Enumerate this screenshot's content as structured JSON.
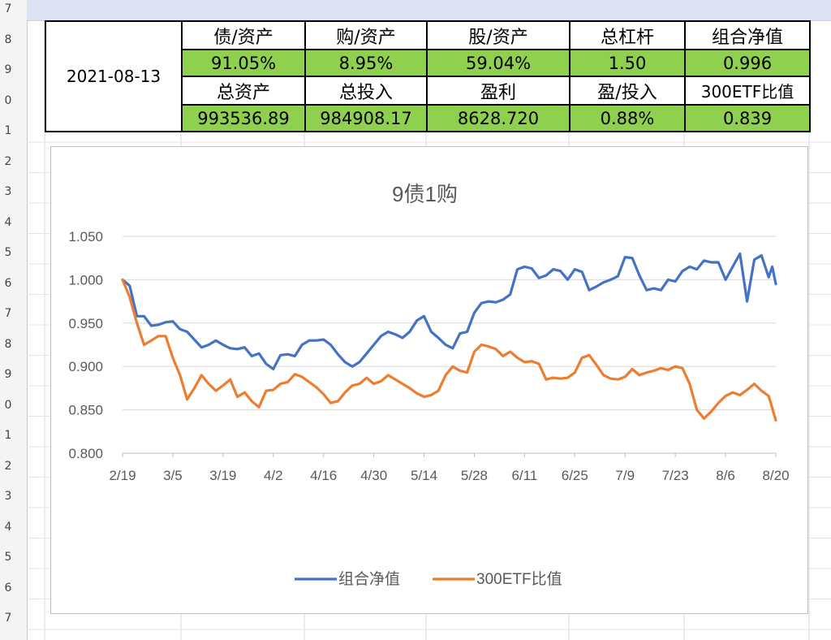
{
  "row_headers": [
    "7",
    "8",
    "9",
    "0",
    "1",
    "2",
    "3",
    "4",
    "5",
    "6",
    "7",
    "8",
    "9",
    "0",
    "1",
    "2",
    "3",
    "4",
    "5",
    "6",
    "7"
  ],
  "summary": {
    "date": "2021-08-13",
    "row1_headers": [
      "债/资产",
      "购/资产",
      "股/资产",
      "总杠杆",
      "组合净值"
    ],
    "row1_values": [
      "91.05%",
      "8.95%",
      "59.04%",
      "1.50",
      "0.996"
    ],
    "row2_headers": [
      "总资产",
      "总投入",
      "盈利",
      "盈/投入",
      "300ETF比值"
    ],
    "row2_values": [
      "993536.89",
      "984908.17",
      "8628.720",
      "0.88%",
      "0.839"
    ]
  },
  "chart_data": {
    "type": "line",
    "title": "9债1购",
    "ylim": [
      0.8,
      1.05
    ],
    "yticks": [
      "0.800",
      "0.850",
      "0.900",
      "0.950",
      "1.000",
      "1.050"
    ],
    "xticks": [
      "2/19",
      "3/5",
      "3/19",
      "4/2",
      "4/16",
      "4/30",
      "5/14",
      "5/28",
      "6/11",
      "6/25",
      "7/9",
      "7/23",
      "8/6",
      "8/20"
    ],
    "x_range_days": [
      0,
      182
    ],
    "grid": "horizontal",
    "legend_position": "bottom",
    "series": [
      {
        "name": "组合净值",
        "color": "#4472c4",
        "x": [
          0,
          2,
          4,
          6,
          8,
          10,
          12,
          14,
          16,
          18,
          20,
          22,
          24,
          26,
          28,
          30,
          32,
          34,
          36,
          38,
          40,
          42,
          44,
          46,
          48,
          50,
          52,
          54,
          56,
          58,
          60,
          62,
          64,
          66,
          68,
          70,
          72,
          74,
          76,
          78,
          80,
          82,
          84,
          86,
          88,
          90,
          92,
          94,
          96,
          98,
          100,
          102,
          104,
          106,
          108,
          110,
          112,
          114,
          116,
          118,
          120,
          122,
          124,
          126,
          128,
          130,
          132,
          134,
          136,
          138,
          140,
          142,
          144,
          146,
          148,
          150,
          152,
          154,
          156,
          158,
          160,
          162,
          164,
          166,
          168,
          170,
          172,
          174,
          176,
          178,
          180,
          182
        ],
        "y": [
          1.0,
          0.993,
          0.965,
          0.958,
          0.947,
          0.948,
          0.951,
          0.952,
          0.943,
          0.94,
          0.931,
          0.922,
          0.925,
          0.93,
          0.925,
          0.921,
          0.92,
          0.922,
          0.912,
          0.915,
          0.903,
          0.897,
          0.913,
          0.914,
          0.912,
          0.925,
          0.93,
          0.93,
          0.931,
          0.925,
          0.914,
          0.905,
          0.9,
          0.905,
          0.915,
          0.925,
          0.935,
          0.94,
          0.937,
          0.933,
          0.94,
          0.953,
          0.946,
          0.94,
          0.933,
          0.925,
          0.921,
          0.938,
          0.94,
          0.962,
          0.973,
          0.975,
          0.974,
          0.977,
          0.983,
          1.012,
          1.015,
          1.013,
          1.012,
          1.005,
          1.012,
          1.01,
          1.0,
          1.012,
          1.009,
          0.988,
          0.992,
          0.997,
          1.0,
          1.004,
          1.026,
          1.025,
          1.005,
          0.988,
          0.99,
          0.988,
          1.0,
          0.998,
          1.01,
          1.015,
          1.012,
          1.01,
          1.02,
          1.02,
          1.0,
          0.965,
          0.96,
          0.975,
          0.992,
          1.005,
          1.012,
          0.995
        ],
        "overrides": [
          [
            4,
            0.958
          ],
          [
            84,
            0.958
          ],
          [
            116,
            1.002
          ],
          [
            162,
            1.022
          ],
          [
            170,
            1.015
          ],
          [
            172,
            1.03
          ],
          [
            176,
            1.023
          ],
          [
            178,
            1.028
          ],
          [
            180,
            1.003
          ],
          [
            181,
            1.015
          ]
        ]
      },
      {
        "name": "300ETF比值",
        "color": "#ed7d31",
        "x": [
          0,
          2,
          4,
          6,
          8,
          10,
          12,
          14,
          16,
          18,
          20,
          22,
          24,
          26,
          28,
          30,
          32,
          34,
          36,
          38,
          40,
          42,
          44,
          46,
          48,
          50,
          52,
          54,
          56,
          58,
          60,
          62,
          64,
          66,
          68,
          70,
          72,
          74,
          76,
          78,
          80,
          82,
          84,
          86,
          88,
          90,
          92,
          94,
          96,
          98,
          100,
          102,
          104,
          106,
          108,
          110,
          112,
          114,
          116,
          118,
          120,
          122,
          124,
          126,
          128,
          130,
          132,
          134,
          136,
          138,
          140,
          142,
          144,
          146,
          148,
          150,
          152,
          154,
          156,
          158,
          160,
          162,
          164,
          166,
          168,
          170,
          172,
          174,
          176,
          178,
          180,
          182
        ],
        "y": [
          1.0,
          0.98,
          0.95,
          0.925,
          0.93,
          0.935,
          0.935,
          0.91,
          0.89,
          0.862,
          0.875,
          0.89,
          0.88,
          0.872,
          0.878,
          0.885,
          0.865,
          0.87,
          0.86,
          0.853,
          0.872,
          0.873,
          0.88,
          0.882,
          0.891,
          0.888,
          0.882,
          0.876,
          0.868,
          0.858,
          0.86,
          0.87,
          0.878,
          0.88,
          0.887,
          0.88,
          0.883,
          0.89,
          0.885,
          0.88,
          0.875,
          0.869,
          0.865,
          0.867,
          0.872,
          0.89,
          0.9,
          0.895,
          0.893,
          0.917,
          0.925,
          0.923,
          0.92,
          0.912,
          0.917,
          0.91,
          0.905,
          0.906,
          0.903,
          0.885,
          0.887,
          0.886,
          0.887,
          0.893,
          0.91,
          0.913,
          0.902,
          0.89,
          0.886,
          0.885,
          0.888,
          0.897,
          0.89,
          0.893,
          0.895,
          0.898,
          0.896,
          0.9,
          0.898,
          0.88,
          0.85,
          0.84,
          0.848,
          0.858,
          0.866,
          0.87,
          0.867,
          0.873,
          0.88,
          0.872,
          0.866,
          0.838
        ]
      }
    ]
  }
}
